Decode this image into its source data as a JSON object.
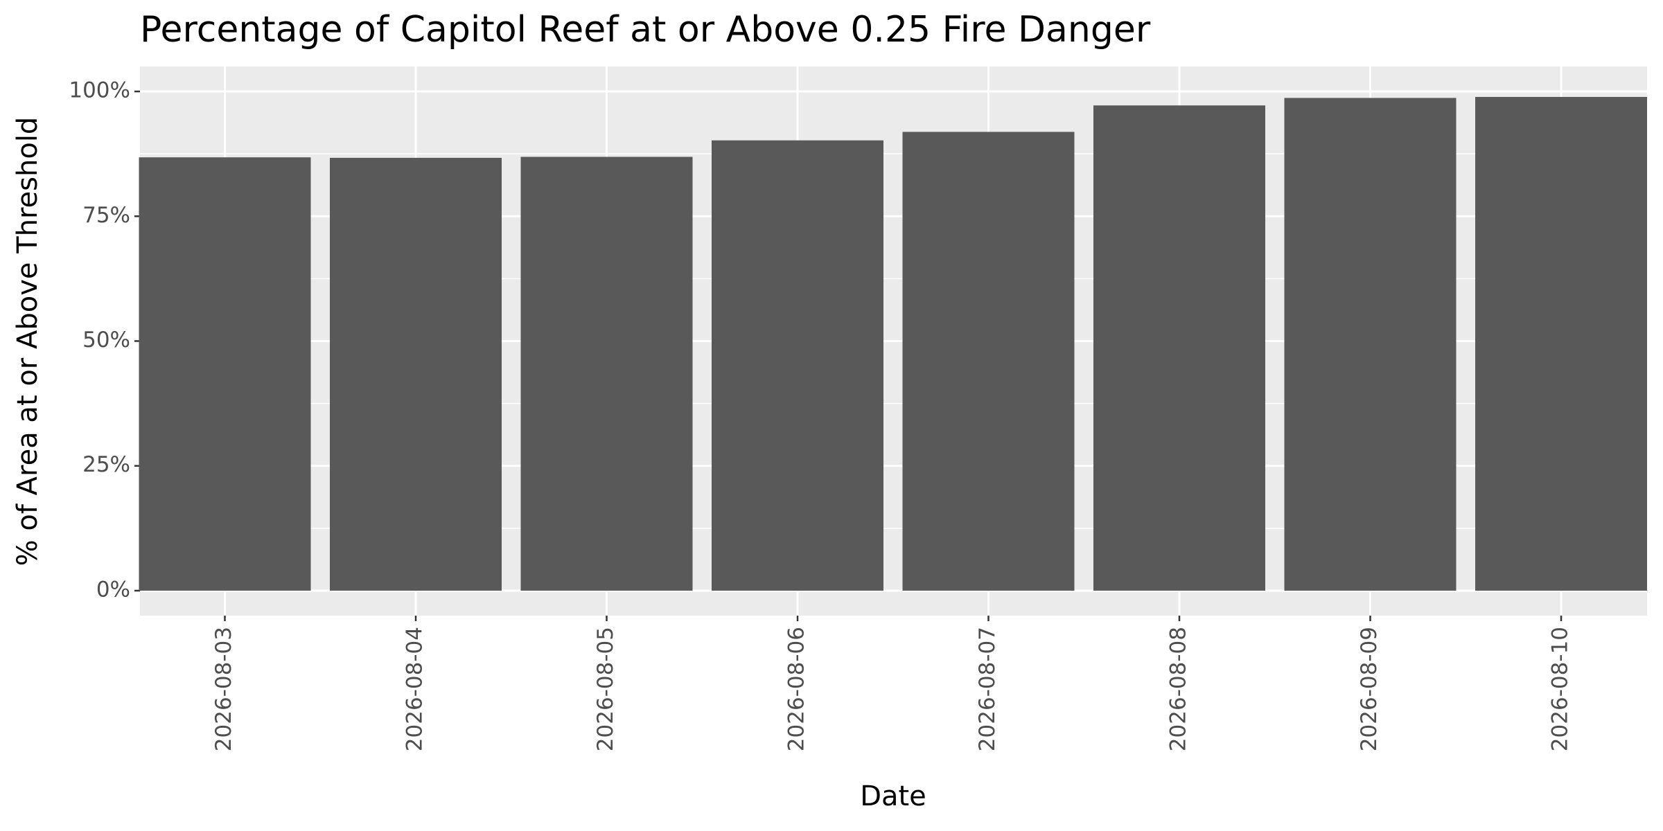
{
  "chart_data": {
    "type": "bar",
    "title": "Percentage of Capitol Reef at or Above 0.25 Fire Danger",
    "x_label": "Date",
    "y_label": "% of Area at or Above Threshold",
    "categories": [
      "2026-08-03",
      "2026-08-04",
      "2026-08-05",
      "2026-08-06",
      "2026-08-07",
      "2026-08-08",
      "2026-08-09",
      "2026-08-10"
    ],
    "values": [
      86.8,
      86.7,
      86.9,
      90.2,
      91.9,
      97.2,
      98.7,
      98.9
    ],
    "color": "#595959",
    "ylim": [
      -5,
      105
    ],
    "yticks": [
      {
        "value": 0,
        "label": "0%"
      },
      {
        "value": 25,
        "label": "25%"
      },
      {
        "value": 50,
        "label": "50%"
      },
      {
        "value": 75,
        "label": "75%"
      },
      {
        "value": 100,
        "label": "100%"
      }
    ],
    "grid": true
  }
}
